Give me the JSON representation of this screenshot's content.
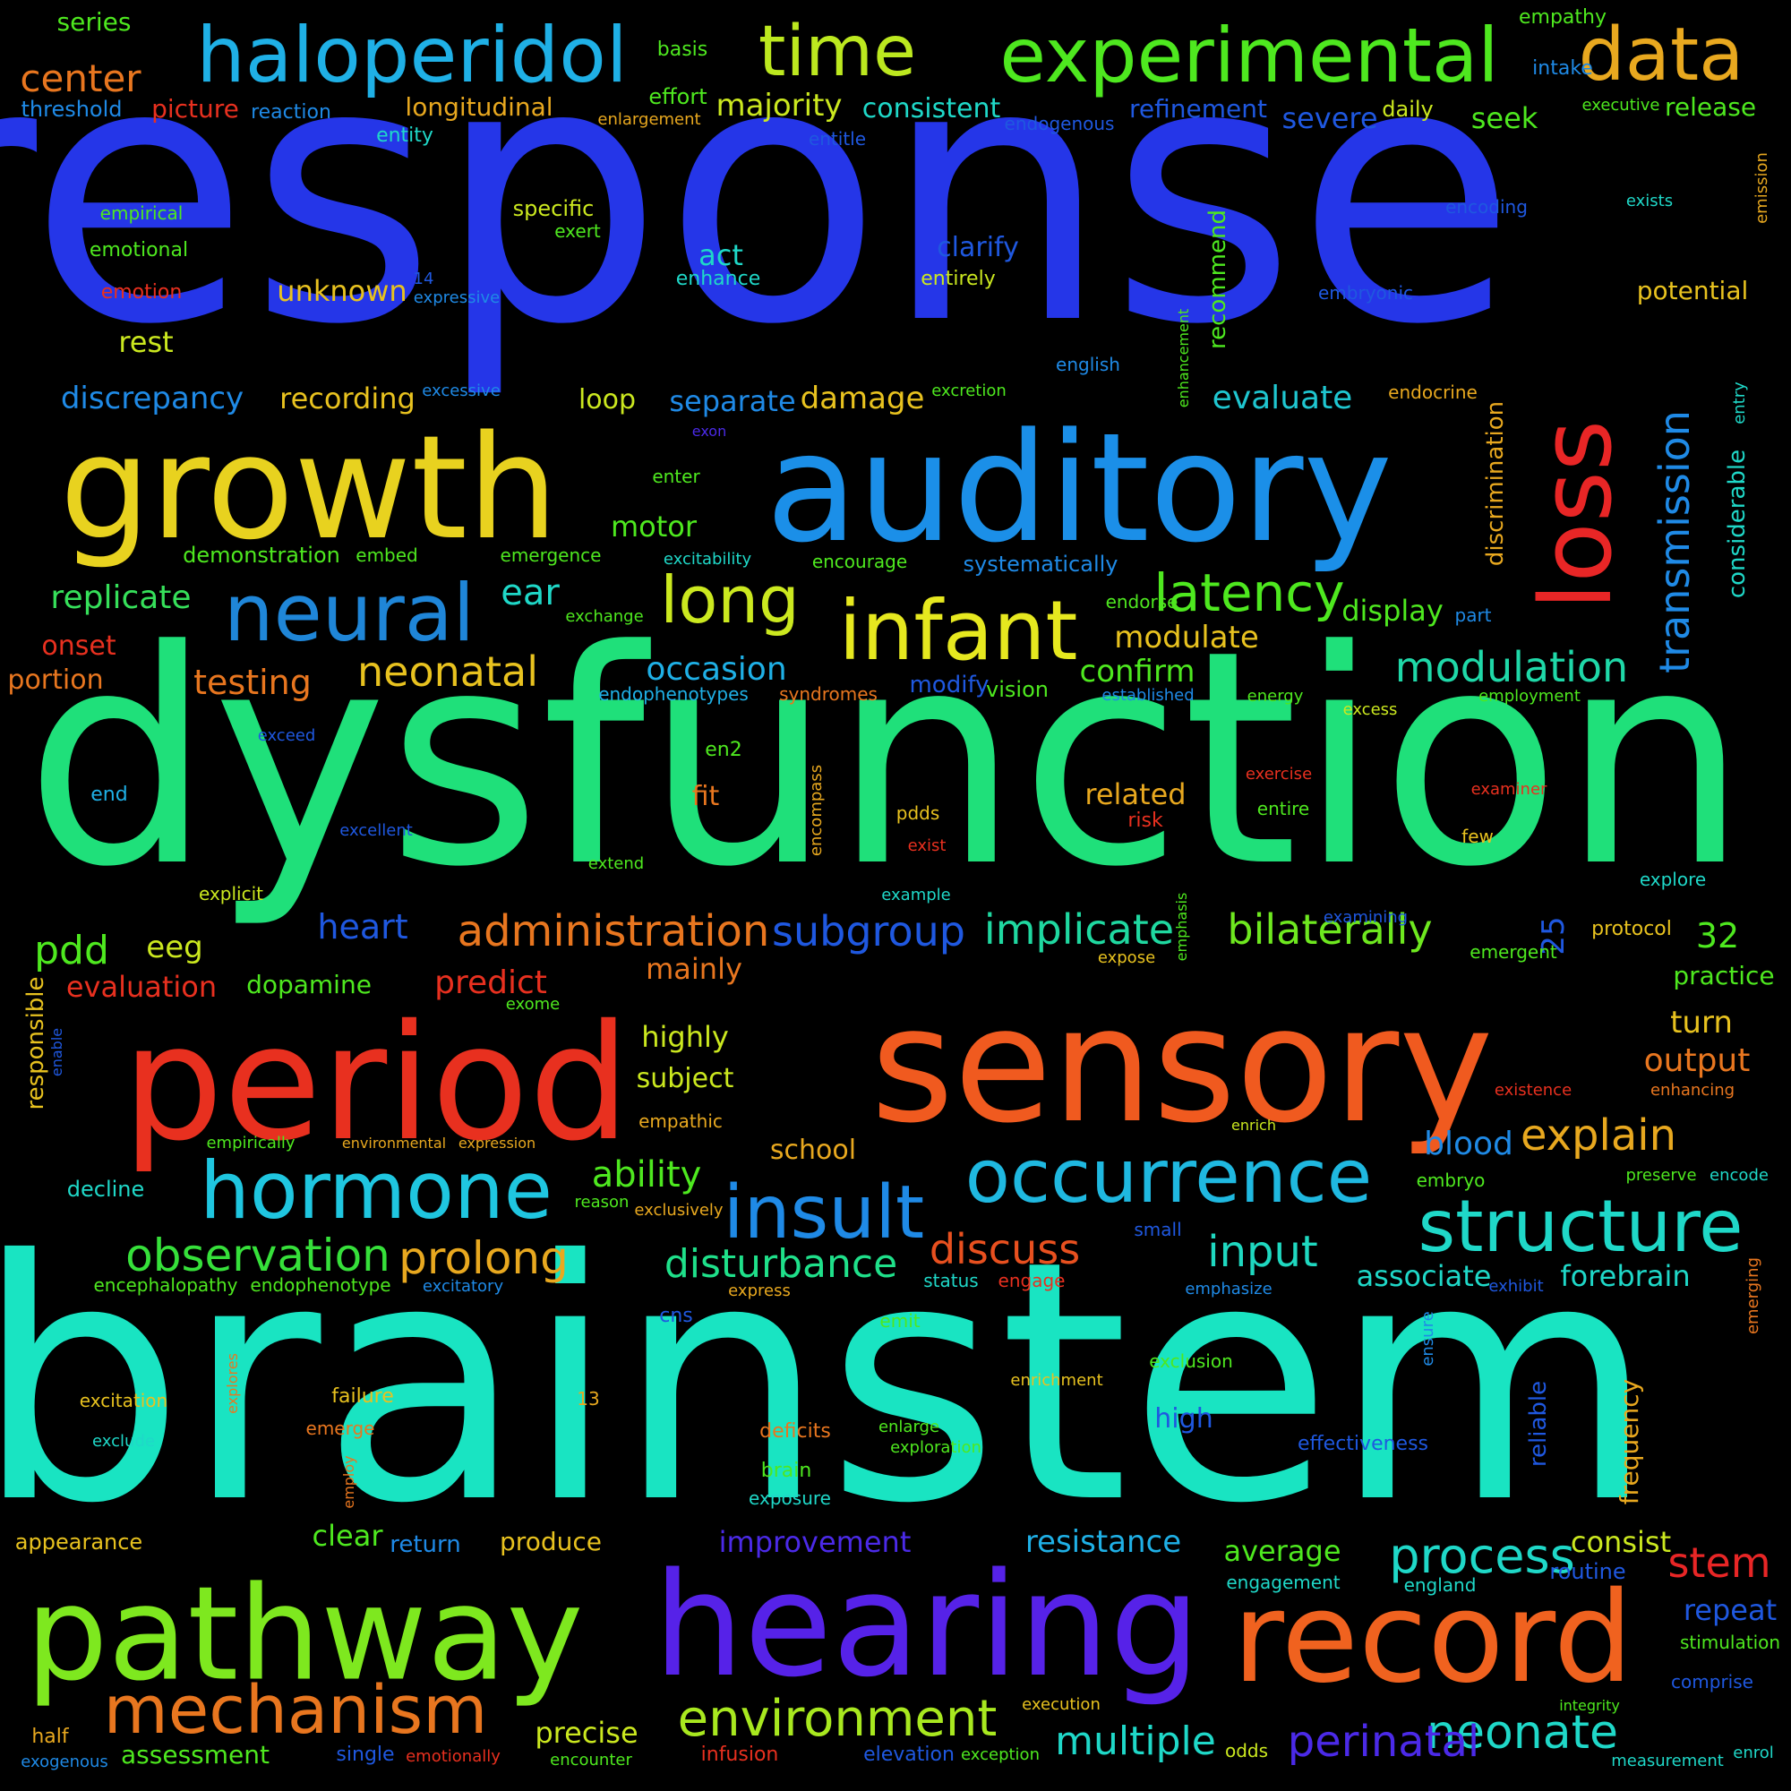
{
  "words": [
    {
      "t": "response",
      "c": "#2536e8"
    },
    {
      "t": "dysfunction",
      "c": "#1fe07a"
    },
    {
      "t": "brainstem",
      "c": "#19e4c2"
    },
    {
      "t": "sensory",
      "c": "#f05a1f"
    },
    {
      "t": "period",
      "c": "#e8301f"
    },
    {
      "t": "auditory",
      "c": "#1b8fe8"
    },
    {
      "t": "growth",
      "c": "#e8d21f"
    },
    {
      "t": "hearing",
      "c": "#5622e8"
    },
    {
      "t": "pathway",
      "c": "#7ee81f"
    },
    {
      "t": "record",
      "c": "#f0621f"
    },
    {
      "t": "loss",
      "c": "#e82626"
    },
    {
      "t": "infant",
      "c": "#e6e81f"
    },
    {
      "t": "neural",
      "c": "#1f86d8"
    },
    {
      "t": "haloperidol",
      "c": "#1fb0e6"
    },
    {
      "t": "experimental",
      "c": "#4ee81f"
    },
    {
      "t": "time",
      "c": "#bce81f"
    },
    {
      "t": "data",
      "c": "#e8a81f"
    },
    {
      "t": "hormone",
      "c": "#1fc6e0"
    },
    {
      "t": "occurrence",
      "c": "#1fb8e0"
    },
    {
      "t": "insult",
      "c": "#1f8ae6"
    },
    {
      "t": "structure",
      "c": "#1fd8c8"
    },
    {
      "t": "mechanism",
      "c": "#e8761f"
    },
    {
      "t": "environment",
      "c": "#a8e81f"
    },
    {
      "t": "long",
      "c": "#cbe81f"
    },
    {
      "t": "latency",
      "c": "#4ee81f"
    },
    {
      "t": "administration",
      "c": "#e8761f"
    },
    {
      "t": "observation",
      "c": "#36e03a"
    },
    {
      "t": "prolong",
      "c": "#e8a81f"
    },
    {
      "t": "disturbance",
      "c": "#1fe08a"
    },
    {
      "t": "process",
      "c": "#1fd8c8"
    },
    {
      "t": "neonate",
      "c": "#1fd8c8"
    },
    {
      "t": "perinatal",
      "c": "#4b2ae8"
    },
    {
      "t": "multiple",
      "c": "#1fd8c8"
    },
    {
      "t": "modulation",
      "c": "#1fd8a8"
    },
    {
      "t": "implicate",
      "c": "#1fd8a0"
    },
    {
      "t": "bilaterally",
      "c": "#6ee81f"
    },
    {
      "t": "subgroup",
      "c": "#1f58e0"
    },
    {
      "t": "transmission",
      "c": "#1f8ae6"
    },
    {
      "t": "neonatal",
      "c": "#e8c21f"
    },
    {
      "t": "discuss",
      "c": "#e8501f"
    },
    {
      "t": "input",
      "c": "#1fd8c0"
    },
    {
      "t": "explain",
      "c": "#e8a81f"
    },
    {
      "t": "stem",
      "c": "#e82626"
    },
    {
      "t": "testing",
      "c": "#e8761f"
    },
    {
      "t": "evaluate",
      "c": "#1fc6d0"
    },
    {
      "t": "separate",
      "c": "#1f8ae6"
    },
    {
      "t": "damage",
      "c": "#e8c21f"
    },
    {
      "t": "occasion",
      "c": "#1fb0e6"
    },
    {
      "t": "modulate",
      "c": "#e8c21f"
    },
    {
      "t": "confirm",
      "c": "#4ee81f"
    },
    {
      "t": "predict",
      "c": "#e8301f"
    },
    {
      "t": "pdd",
      "c": "#4ee81f"
    },
    {
      "t": "ability",
      "c": "#4ee81f"
    },
    {
      "t": "improvement",
      "c": "#4b2ae8"
    },
    {
      "t": "resistance",
      "c": "#1fb0e6"
    },
    {
      "t": "replicate",
      "c": "#36e05a"
    },
    {
      "t": "discrepancy",
      "c": "#1f8ae6"
    },
    {
      "t": "recording",
      "c": "#e8c21f"
    },
    {
      "t": "precise",
      "c": "#cbe81f"
    },
    {
      "t": "assessment",
      "c": "#4ee81f"
    },
    {
      "t": "appearance",
      "c": "#e8c21f"
    },
    {
      "t": "clear",
      "c": "#4ee81f"
    },
    {
      "t": "produce",
      "c": "#e8c21f"
    },
    {
      "t": "return",
      "c": "#1f8ae6"
    },
    {
      "t": "average",
      "c": "#4ee81f"
    },
    {
      "t": "consist",
      "c": "#cbe81f"
    },
    {
      "t": "repeat",
      "c": "#1f58e0"
    },
    {
      "t": "blood",
      "c": "#1f8ae6"
    },
    {
      "t": "output",
      "c": "#e8761f"
    },
    {
      "t": "turn",
      "c": "#e8c21f"
    },
    {
      "t": "associate",
      "c": "#1fd8c8"
    },
    {
      "t": "forebrain",
      "c": "#1fd8c8"
    },
    {
      "t": "heart",
      "c": "#1f58e0"
    },
    {
      "t": "eeg",
      "c": "#cbe81f"
    },
    {
      "t": "evaluation",
      "c": "#e8301f"
    },
    {
      "t": "dopamine",
      "c": "#4ee81f"
    },
    {
      "t": "mainly",
      "c": "#e8761f"
    },
    {
      "t": "highly",
      "c": "#cbe81f"
    },
    {
      "t": "subject",
      "c": "#cbe81f"
    },
    {
      "t": "school",
      "c": "#e8a81f"
    },
    {
      "t": "center",
      "c": "#e8761f"
    },
    {
      "t": "threshold",
      "c": "#1f8ae6"
    },
    {
      "t": "picture",
      "c": "#e8301f"
    },
    {
      "t": "reaction",
      "c": "#1f8ae6"
    },
    {
      "t": "longitudinal",
      "c": "#e8a81f"
    },
    {
      "t": "majority",
      "c": "#cbe81f"
    },
    {
      "t": "consistent",
      "c": "#1fd8c8"
    },
    {
      "t": "refinement",
      "c": "#1f58e0"
    },
    {
      "t": "severe",
      "c": "#1f58e0"
    },
    {
      "t": "seek",
      "c": "#4ee81f"
    },
    {
      "t": "release",
      "c": "#4ee81f"
    },
    {
      "t": "series",
      "c": "#4ee81f"
    },
    {
      "t": "basis",
      "c": "#4ee81f"
    },
    {
      "t": "effort",
      "c": "#4ee81f"
    },
    {
      "t": "enlargement",
      "c": "#e8a81f"
    },
    {
      "t": "empathy",
      "c": "#4ee81f"
    },
    {
      "t": "intake",
      "c": "#1f8ae6"
    },
    {
      "t": "daily",
      "c": "#cbe81f"
    },
    {
      "t": "executive",
      "c": "#4ee81f"
    },
    {
      "t": "entity",
      "c": "#1fd8c8"
    },
    {
      "t": "entitle",
      "c": "#1f58e0"
    },
    {
      "t": "endogenous",
      "c": "#1f58e0"
    },
    {
      "t": "empirical",
      "c": "#4ee81f"
    },
    {
      "t": "emotional",
      "c": "#4ee81f"
    },
    {
      "t": "emotion",
      "c": "#e8301f"
    },
    {
      "t": "specific",
      "c": "#cbe81f"
    },
    {
      "t": "exert",
      "c": "#4ee81f"
    },
    {
      "t": "act",
      "c": "#1fd8c8"
    },
    {
      "t": "enhance",
      "c": "#1fd8c8"
    },
    {
      "t": "clarify",
      "c": "#1f58e0"
    },
    {
      "t": "entirely",
      "c": "#cbe81f"
    },
    {
      "t": "unknown",
      "c": "#e8c21f"
    },
    {
      "t": "expressive",
      "c": "#1f8ae6"
    },
    {
      "t": "rest",
      "c": "#cbe81f"
    },
    {
      "t": "encoding",
      "c": "#1f58e0"
    },
    {
      "t": "exists",
      "c": "#1fd8c8"
    },
    {
      "t": "embryonic",
      "c": "#1f58e0"
    },
    {
      "t": "potential",
      "c": "#e8c21f"
    },
    {
      "t": "english",
      "c": "#1f8ae6"
    },
    {
      "t": "recommend",
      "c": "#4ee81f"
    },
    {
      "t": "enhancement",
      "c": "#4ee81f"
    },
    {
      "t": "endocrine",
      "c": "#e8a81f"
    },
    {
      "t": "excessive",
      "c": "#1f8ae6"
    },
    {
      "t": "loop",
      "c": "#cbe81f"
    },
    {
      "t": "excretion",
      "c": "#4ee81f"
    },
    {
      "t": "exon",
      "c": "#4b2ae8"
    },
    {
      "t": "enter",
      "c": "#4ee81f"
    },
    {
      "t": "motor",
      "c": "#4ee81f"
    },
    {
      "t": "demonstration",
      "c": "#4ee81f"
    },
    {
      "t": "embed",
      "c": "#4ee81f"
    },
    {
      "t": "emergence",
      "c": "#4ee81f"
    },
    {
      "t": "excitability",
      "c": "#1fd8c8"
    },
    {
      "t": "encourage",
      "c": "#4ee81f"
    },
    {
      "t": "systematically",
      "c": "#1f8ae6"
    },
    {
      "t": "ear",
      "c": "#1fd8c8"
    },
    {
      "t": "exchange",
      "c": "#4ee81f"
    },
    {
      "t": "display",
      "c": "#4ee81f"
    },
    {
      "t": "endorse",
      "c": "#4ee81f"
    },
    {
      "t": "part",
      "c": "#1f8ae6"
    },
    {
      "t": "discrimination",
      "c": "#e8a81f"
    },
    {
      "t": "considerable",
      "c": "#1fd8c8"
    },
    {
      "t": "entry",
      "c": "#1fd8c8"
    },
    {
      "t": "emission",
      "c": "#e8a81f"
    },
    {
      "t": "onset",
      "c": "#e8301f"
    },
    {
      "t": "portion",
      "c": "#e8761f"
    },
    {
      "t": "endophenotypes",
      "c": "#1fb0e6"
    },
    {
      "t": "syndromes",
      "c": "#e8761f"
    },
    {
      "t": "modify",
      "c": "#1f58e0"
    },
    {
      "t": "vision",
      "c": "#4ee81f"
    },
    {
      "t": "established",
      "c": "#1f8ae6"
    },
    {
      "t": "energy",
      "c": "#4ee81f"
    },
    {
      "t": "employment",
      "c": "#4ee81f"
    },
    {
      "t": "excess",
      "c": "#cbe81f"
    },
    {
      "t": "exceed",
      "c": "#1f58e0"
    },
    {
      "t": "en2",
      "c": "#4ee81f"
    },
    {
      "t": "fit",
      "c": "#e8761f"
    },
    {
      "t": "encompass",
      "c": "#e8a81f"
    },
    {
      "t": "end",
      "c": "#1fb0e6"
    },
    {
      "t": "excellent",
      "c": "#1f58e0"
    },
    {
      "t": "related",
      "c": "#e8a81f"
    },
    {
      "t": "risk",
      "c": "#e8301f"
    },
    {
      "t": "pdds",
      "c": "#e8c21f"
    },
    {
      "t": "exist",
      "c": "#e8301f"
    },
    {
      "t": "extend",
      "c": "#4ee81f"
    },
    {
      "t": "example",
      "c": "#1fd8c8"
    },
    {
      "t": "exercise",
      "c": "#e8301f"
    },
    {
      "t": "entire",
      "c": "#4ee81f"
    },
    {
      "t": "examiner",
      "c": "#e8301f"
    },
    {
      "t": "few",
      "c": "#e8c21f"
    },
    {
      "t": "explicit",
      "c": "#cbe81f"
    },
    {
      "t": "explore",
      "c": "#1fd8c8"
    },
    {
      "t": "examining",
      "c": "#1f58e0"
    },
    {
      "t": "25",
      "c": "#1f58e0"
    },
    {
      "t": "protocol",
      "c": "#e8c21f"
    },
    {
      "t": "32",
      "c": "#4ee81f"
    },
    {
      "t": "emphasis",
      "c": "#4ee81f"
    },
    {
      "t": "emergent",
      "c": "#4ee81f"
    },
    {
      "t": "practice",
      "c": "#4ee81f"
    },
    {
      "t": "expose",
      "c": "#e8c21f"
    },
    {
      "t": "exome",
      "c": "#4ee81f"
    },
    {
      "t": "responsible",
      "c": "#e8c21f"
    },
    {
      "t": "enable",
      "c": "#1f58e0"
    },
    {
      "t": "empathic",
      "c": "#e8a81f"
    },
    {
      "t": "existence",
      "c": "#e8301f"
    },
    {
      "t": "enhancing",
      "c": "#e8761f"
    },
    {
      "t": "enrich",
      "c": "#cbe81f"
    },
    {
      "t": "embryo",
      "c": "#4ee81f"
    },
    {
      "t": "preserve",
      "c": "#4ee81f"
    },
    {
      "t": "encode",
      "c": "#1fd8c8"
    },
    {
      "t": "empirically",
      "c": "#4ee81f"
    },
    {
      "t": "environmental",
      "c": "#e8a81f"
    },
    {
      "t": "expression",
      "c": "#e8a81f"
    },
    {
      "t": "decline",
      "c": "#1fd8c8"
    },
    {
      "t": "reason",
      "c": "#4ee81f"
    },
    {
      "t": "exclusively",
      "c": "#e8a81f"
    },
    {
      "t": "small",
      "c": "#1f58e0"
    },
    {
      "t": "encephalopathy",
      "c": "#4ee81f"
    },
    {
      "t": "endophenotype",
      "c": "#4ee81f"
    },
    {
      "t": "excitatory",
      "c": "#1f8ae6"
    },
    {
      "t": "express",
      "c": "#e8a81f"
    },
    {
      "t": "status",
      "c": "#1fd8c8"
    },
    {
      "t": "engage",
      "c": "#e8301f"
    },
    {
      "t": "emphasize",
      "c": "#1f8ae6"
    },
    {
      "t": "exhibit",
      "c": "#1f58e0"
    },
    {
      "t": "emerging",
      "c": "#e8761f"
    },
    {
      "t": "cns",
      "c": "#1f58e0"
    },
    {
      "t": "emit",
      "c": "#4ee81f"
    },
    {
      "t": "exclusion",
      "c": "#4ee81f"
    },
    {
      "t": "ensure",
      "c": "#1f8ae6"
    },
    {
      "t": "excitation",
      "c": "#e8c21f"
    },
    {
      "t": "explores",
      "c": "#e8761f"
    },
    {
      "t": "failure",
      "c": "#e8c21f"
    },
    {
      "t": "13",
      "c": "#e8a81f"
    },
    {
      "t": "enrichment",
      "c": "#e8c21f"
    },
    {
      "t": "high",
      "c": "#1f58e0"
    },
    {
      "t": "reliable",
      "c": "#1f58e0"
    },
    {
      "t": "frequency",
      "c": "#e8a81f"
    },
    {
      "t": "exclude",
      "c": "#1fd8c8"
    },
    {
      "t": "emerge",
      "c": "#e8761f"
    },
    {
      "t": "deficits",
      "c": "#e8761f"
    },
    {
      "t": "enlarge",
      "c": "#4ee81f"
    },
    {
      "t": "exploration",
      "c": "#4ee81f"
    },
    {
      "t": "effectiveness",
      "c": "#1f58e0"
    },
    {
      "t": "brain",
      "c": "#4ee81f"
    },
    {
      "t": "exposure",
      "c": "#1fd8c8"
    },
    {
      "t": "employ",
      "c": "#e8761f"
    },
    {
      "t": "engagement",
      "c": "#1fd8c8"
    },
    {
      "t": "england",
      "c": "#1fd8c8"
    },
    {
      "t": "routine",
      "c": "#1f58e0"
    },
    {
      "t": "stimulation",
      "c": "#4ee81f"
    },
    {
      "t": "comprise",
      "c": "#1f58e0"
    },
    {
      "t": "execution",
      "c": "#e8c21f"
    },
    {
      "t": "exception",
      "c": "#4ee81f"
    },
    {
      "t": "elevation",
      "c": "#1f58e0"
    },
    {
      "t": "infusion",
      "c": "#e8301f"
    },
    {
      "t": "encounter",
      "c": "#4ee81f"
    },
    {
      "t": "single",
      "c": "#1f58e0"
    },
    {
      "t": "emotionally",
      "c": "#e8301f"
    },
    {
      "t": "half",
      "c": "#e8a81f"
    },
    {
      "t": "exogenous",
      "c": "#1f8ae6"
    },
    {
      "t": "odds",
      "c": "#cbe81f"
    },
    {
      "t": "integrity",
      "c": "#4ee81f"
    },
    {
      "t": "measurement",
      "c": "#1fd8c8"
    },
    {
      "t": "enrol",
      "c": "#1fd8c8"
    },
    {
      "t": "14",
      "c": "#1f58e0"
    }
  ]
}
